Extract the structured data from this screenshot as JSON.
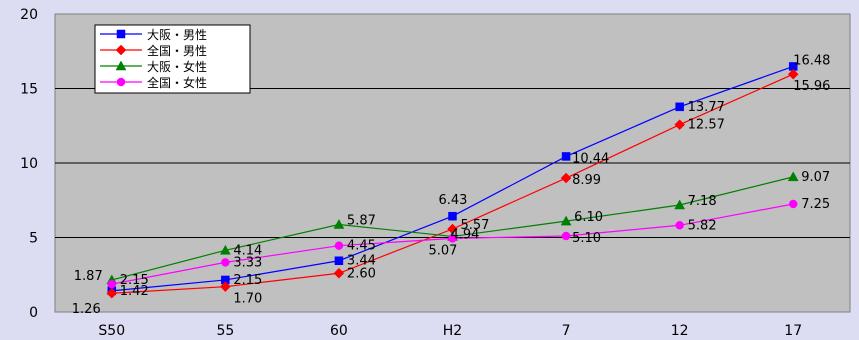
{
  "chart_data": {
    "type": "line",
    "categories": [
      "S50",
      "55",
      "60",
      "H2",
      "7",
      "12",
      "17"
    ],
    "ylim": [
      0,
      20
    ],
    "yticks": [
      "0",
      "5",
      "10",
      "15",
      "20"
    ],
    "grid": true,
    "legend_position": "top-left",
    "series": [
      {
        "name": "大阪・男性",
        "color": "#0000ff",
        "marker": "square",
        "values": [
          1.42,
          2.15,
          3.44,
          6.43,
          10.44,
          13.77,
          16.48
        ],
        "labels": [
          "1.42",
          "2.15",
          "3.44",
          "6.43",
          "10.44",
          "13.77",
          "16.48"
        ]
      },
      {
        "name": "全国・男性",
        "color": "#ff0000",
        "marker": "diamond",
        "values": [
          1.26,
          1.7,
          2.6,
          5.57,
          8.99,
          12.57,
          15.96
        ],
        "labels": [
          "1.26",
          "1.70",
          "2.60",
          "5.57",
          "8.99",
          "12.57",
          "15.96"
        ]
      },
      {
        "name": "大阪・女性",
        "color": "#008000",
        "marker": "triangle",
        "values": [
          2.15,
          4.14,
          5.87,
          5.07,
          6.1,
          7.18,
          9.07
        ],
        "labels": [
          "2.15",
          "4.14",
          "5.87",
          "5.07",
          "6.10",
          "7.18",
          "9.07"
        ]
      },
      {
        "name": "全国・女性",
        "color": "#ff00ff",
        "marker": "circle",
        "values": [
          1.87,
          3.33,
          4.45,
          4.94,
          5.1,
          5.82,
          7.25
        ],
        "labels": [
          "1.87",
          "3.33",
          "4.45",
          "4.94",
          "5.10",
          "5.82",
          "7.25"
        ]
      }
    ]
  }
}
